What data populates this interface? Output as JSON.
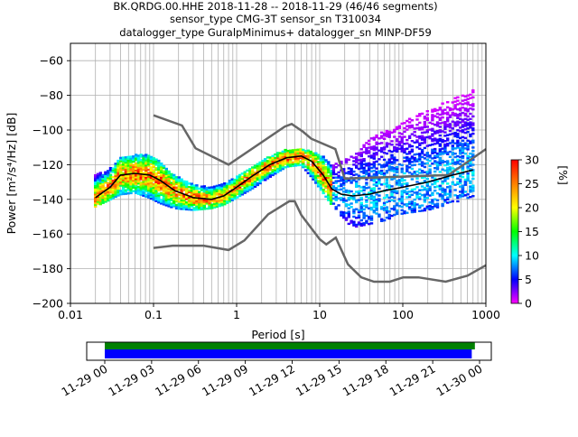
{
  "chart_data": [
    {
      "type": "heatmap",
      "title_lines": [
        "BK.QRDG.00.HHE   2018-11-28 -- 2018-11-29  (46/46 segments)",
        "sensor_type CMG-3T sensor_sn T310034",
        "datalogger_type GuralpMinimus+ datalogger_sn MINP-DF59"
      ],
      "xlabel": "Period [s]",
      "ylabel_html": "Power [m²/s⁴/Hz] [dB]",
      "xscale": "log",
      "xlim": [
        0.01,
        1000
      ],
      "ylim": [
        -200,
        -50
      ],
      "xticks": [
        {
          "v": 0.01,
          "label": "0.01"
        },
        {
          "v": 0.1,
          "label": "0.1"
        },
        {
          "v": 1,
          "label": "1"
        },
        {
          "v": 10,
          "label": "10"
        },
        {
          "v": 100,
          "label": "100"
        },
        {
          "v": 1000,
          "label": "1000"
        }
      ],
      "yticks": [
        {
          "v": -60,
          "label": "−60"
        },
        {
          "v": -80,
          "label": "−80"
        },
        {
          "v": -100,
          "label": "−100"
        },
        {
          "v": -120,
          "label": "−120"
        },
        {
          "v": -140,
          "label": "−140"
        },
        {
          "v": -160,
          "label": "−160"
        },
        {
          "v": -180,
          "label": "−180"
        },
        {
          "v": -200,
          "label": "−200"
        }
      ],
      "grid": true,
      "colorbar": {
        "label": "[%]",
        "min": 0,
        "max": 30,
        "ticks": [
          {
            "v": 0,
            "label": "0"
          },
          {
            "v": 5,
            "label": "5"
          },
          {
            "v": 10,
            "label": "10"
          },
          {
            "v": 15,
            "label": "15"
          },
          {
            "v": 20,
            "label": "20"
          },
          {
            "v": 25,
            "label": "25"
          },
          {
            "v": 30,
            "label": "30"
          }
        ],
        "colors": [
          "#ff00ff",
          "#0000ff",
          "#00ffff",
          "#00ff00",
          "#ffff00",
          "#ff8000",
          "#ff0000"
        ]
      },
      "noise_model_high": [
        [
          0.1,
          -91.5
        ],
        [
          0.22,
          -97.4
        ],
        [
          0.32,
          -110.5
        ],
        [
          0.8,
          -120
        ],
        [
          3.8,
          -98
        ],
        [
          4.6,
          -96.5
        ],
        [
          6.3,
          -101
        ],
        [
          7.9,
          -105
        ],
        [
          15.4,
          -111
        ],
        [
          20,
          -128
        ],
        [
          354.8,
          -126
        ],
        [
          1000,
          -111
        ]
      ],
      "noise_model_low": [
        [
          0.1,
          -168
        ],
        [
          0.17,
          -166.7
        ],
        [
          0.4,
          -166.7
        ],
        [
          0.8,
          -169.2
        ],
        [
          1.24,
          -163.7
        ],
        [
          2.4,
          -148.6
        ],
        [
          4.3,
          -141.1
        ],
        [
          5,
          -141.1
        ],
        [
          6,
          -149
        ],
        [
          10,
          -163
        ],
        [
          12,
          -166
        ],
        [
          15.6,
          -162.1
        ],
        [
          21.9,
          -177.5
        ],
        [
          31.6,
          -185
        ],
        [
          45,
          -187.5
        ],
        [
          70,
          -187.5
        ],
        [
          101,
          -185
        ],
        [
          154,
          -185
        ],
        [
          328,
          -187.5
        ],
        [
          600,
          -184
        ],
        [
          1000,
          -178
        ]
      ],
      "mode_curve": [
        [
          0.02,
          -139
        ],
        [
          0.03,
          -133
        ],
        [
          0.04,
          -126
        ],
        [
          0.06,
          -125
        ],
        [
          0.09,
          -126
        ],
        [
          0.12,
          -129
        ],
        [
          0.18,
          -135
        ],
        [
          0.3,
          -139
        ],
        [
          0.5,
          -140
        ],
        [
          0.7,
          -138
        ],
        [
          1,
          -133
        ],
        [
          1.5,
          -127
        ],
        [
          2.5,
          -120
        ],
        [
          4,
          -116
        ],
        [
          6,
          -115
        ],
        [
          8,
          -118
        ],
        [
          11,
          -126
        ],
        [
          14,
          -134
        ],
        [
          18,
          -137
        ],
        [
          25,
          -138
        ],
        [
          40,
          -137
        ],
        [
          60,
          -135
        ],
        [
          100,
          -133
        ],
        [
          200,
          -130
        ],
        [
          400,
          -126
        ],
        [
          700,
          -123
        ]
      ],
      "psd_spread_bins": [
        {
          "p": 0.02,
          "lo": -144,
          "hi": -126
        },
        {
          "p": 0.03,
          "lo": -140,
          "hi": -122
        },
        {
          "p": 0.04,
          "lo": -137,
          "hi": -116
        },
        {
          "p": 0.06,
          "lo": -136,
          "hi": -114
        },
        {
          "p": 0.09,
          "lo": -139,
          "hi": -114
        },
        {
          "p": 0.12,
          "lo": -142,
          "hi": -118
        },
        {
          "p": 0.18,
          "lo": -145,
          "hi": -126
        },
        {
          "p": 0.3,
          "lo": -146,
          "hi": -131
        },
        {
          "p": 0.5,
          "lo": -145,
          "hi": -133
        },
        {
          "p": 0.7,
          "lo": -143,
          "hi": -131
        },
        {
          "p": 1,
          "lo": -139,
          "hi": -127
        },
        {
          "p": 1.5,
          "lo": -134,
          "hi": -121
        },
        {
          "p": 2.5,
          "lo": -127,
          "hi": -115
        },
        {
          "p": 4,
          "lo": -121,
          "hi": -111
        },
        {
          "p": 6,
          "lo": -120,
          "hi": -111
        },
        {
          "p": 8,
          "lo": -127,
          "hi": -112
        },
        {
          "p": 11,
          "lo": -136,
          "hi": -115
        },
        {
          "p": 14,
          "lo": -143,
          "hi": -120
        },
        {
          "p": 18,
          "lo": -150,
          "hi": -118
        },
        {
          "p": 25,
          "lo": -156,
          "hi": -114
        },
        {
          "p": 40,
          "lo": -154,
          "hi": -105
        },
        {
          "p": 60,
          "lo": -152,
          "hi": -100
        },
        {
          "p": 100,
          "lo": -148,
          "hi": -95
        },
        {
          "p": 200,
          "lo": -146,
          "hi": -88
        },
        {
          "p": 400,
          "lo": -142,
          "hi": -82
        },
        {
          "p": 700,
          "lo": -138,
          "hi": -77
        }
      ]
    },
    {
      "type": "timeline",
      "xticks": [
        "11-29 00",
        "11-29 03",
        "11-29 06",
        "11-29 09",
        "11-29 12",
        "11-29 15",
        "11-29 18",
        "11-29 21",
        "11-30 00"
      ],
      "data_coverage": {
        "color": "#008000",
        "from_hours": 0,
        "to_hours": 23.7
      },
      "psd_coverage": {
        "color": "#0000ff",
        "from_hours": 0,
        "to_hours": 23.5
      }
    }
  ]
}
